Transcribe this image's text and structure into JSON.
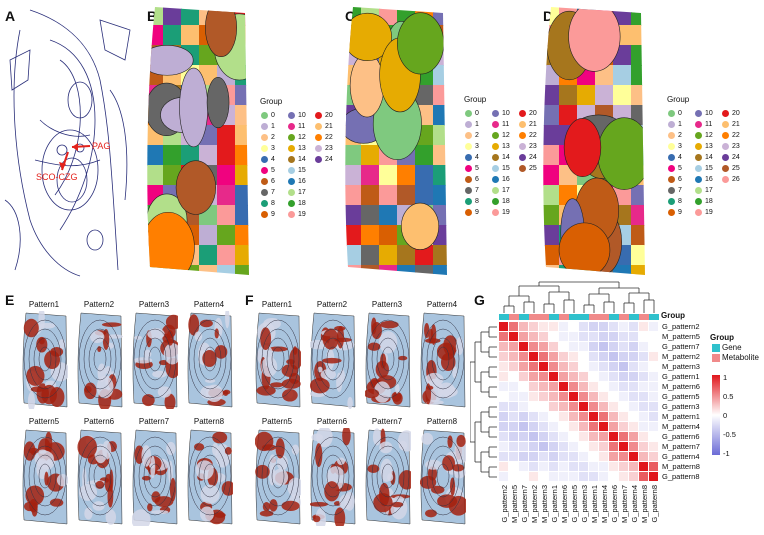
{
  "panels": {
    "A": {
      "label": "A",
      "annotations": [
        "PAG",
        "SCO-CZG"
      ],
      "arrow_color": "#e3221c"
    },
    "B": {
      "label": "B",
      "legend_title": "Group",
      "groups": [
        "0",
        "1",
        "2",
        "3",
        "4",
        "5",
        "6",
        "7",
        "8",
        "9",
        "10",
        "11",
        "12",
        "13",
        "14",
        "15",
        "16",
        "17",
        "18",
        "19",
        "20",
        "21",
        "22",
        "23",
        "24"
      ]
    },
    "C": {
      "label": "C",
      "legend_title": "Group",
      "groups": [
        "0",
        "1",
        "2",
        "3",
        "4",
        "5",
        "6",
        "7",
        "8",
        "9",
        "10",
        "11",
        "12",
        "13",
        "14",
        "15",
        "16",
        "17",
        "18",
        "19",
        "20",
        "21",
        "22",
        "23",
        "24",
        "25"
      ]
    },
    "D": {
      "label": "D",
      "legend_title": "Group",
      "groups": [
        "0",
        "1",
        "2",
        "3",
        "4",
        "5",
        "6",
        "7",
        "8",
        "9",
        "10",
        "11",
        "12",
        "13",
        "14",
        "15",
        "16",
        "17",
        "18",
        "19",
        "20",
        "21",
        "22",
        "23",
        "24",
        "25",
        "26"
      ]
    },
    "E": {
      "label": "E",
      "patterns": [
        "Pattern1",
        "Pattern2",
        "Pattern3",
        "Pattern4",
        "Pattern5",
        "Pattern6",
        "Pattern7",
        "Pattern8"
      ]
    },
    "F": {
      "label": "F",
      "patterns": [
        "Pattern1",
        "Pattern2",
        "Pattern3",
        "Pattern4",
        "Pattern5",
        "Pattern6",
        "Pattern7",
        "Pattern8"
      ]
    },
    "G": {
      "label": "G",
      "group_title": "Group",
      "group_legend": [
        {
          "name": "Gene",
          "color": "#2fc1cc"
        },
        {
          "name": "Metabolite",
          "color": "#f08a8a"
        }
      ],
      "colorbar_ticks": [
        "1",
        "0.5",
        "0",
        "-0.5",
        "-1"
      ],
      "row_labels": [
        "G_pattern2",
        "M_pattern5",
        "G_pattern7",
        "M_pattern2",
        "M_pattern3",
        "G_pattern1",
        "M_pattern6",
        "G_pattern5",
        "G_pattern3",
        "M_pattern1",
        "M_pattern4",
        "G_pattern6",
        "M_pattern7",
        "G_pattern4",
        "M_pattern8",
        "G_pattern8"
      ],
      "col_labels": [
        "G_pattern2",
        "M_pattern5",
        "G_pattern7",
        "M_pattern2",
        "M_pattern3",
        "G_pattern1",
        "M_pattern6",
        "G_pattern5",
        "G_pattern3",
        "M_pattern1",
        "M_pattern4",
        "G_pattern6",
        "M_pattern7",
        "G_pattern4",
        "M_pattern8",
        "G_pattern8"
      ]
    }
  },
  "palette": [
    "#7fc97f",
    "#beaed4",
    "#fdc086",
    "#ffff99",
    "#386cb0",
    "#f0027f",
    "#bf5b17",
    "#666666",
    "#1b9e77",
    "#d95f02",
    "#7570b3",
    "#e7298a",
    "#66a61e",
    "#e6ab02",
    "#a6761d",
    "#a6cee3",
    "#1f78b4",
    "#b2df8a",
    "#33a02c",
    "#fb9a99",
    "#e31a1c",
    "#fdbf6f",
    "#ff7f00",
    "#cab2d6",
    "#6a3d9a",
    "#b15928",
    "#fb9a99"
  ],
  "chart_data": {
    "type": "heatmap",
    "x": [
      "G_pattern2",
      "M_pattern5",
      "G_pattern7",
      "M_pattern2",
      "M_pattern3",
      "G_pattern1",
      "M_pattern6",
      "G_pattern5",
      "G_pattern3",
      "M_pattern1",
      "M_pattern4",
      "G_pattern6",
      "M_pattern7",
      "G_pattern4",
      "M_pattern8",
      "G_pattern8"
    ],
    "y": [
      "G_pattern2",
      "M_pattern5",
      "G_pattern7",
      "M_pattern2",
      "M_pattern3",
      "G_pattern1",
      "M_pattern6",
      "G_pattern5",
      "G_pattern3",
      "M_pattern1",
      "M_pattern4",
      "G_pattern6",
      "M_pattern7",
      "G_pattern4",
      "M_pattern8",
      "G_pattern8"
    ],
    "zlim": [
      -1,
      1
    ],
    "values": [
      [
        1,
        0.6,
        0.3,
        0.2,
        0.1,
        0.1,
        -0.1,
        0,
        -0.2,
        -0.3,
        -0.3,
        -0.2,
        -0.1,
        -0.2,
        0.1,
        -0.1
      ],
      [
        0.6,
        1,
        0.4,
        0.3,
        0.2,
        0,
        -0.1,
        -0.1,
        -0.2,
        -0.2,
        -0.3,
        -0.3,
        -0.2,
        -0.2,
        0,
        0
      ],
      [
        0.3,
        0.4,
        1,
        0.5,
        0.4,
        0.2,
        0,
        -0.1,
        -0.1,
        -0.3,
        -0.4,
        -0.3,
        -0.2,
        -0.3,
        -0.1,
        0
      ],
      [
        0.2,
        0.3,
        0.5,
        1,
        0.6,
        0.4,
        0.2,
        0.1,
        0,
        -0.2,
        -0.3,
        -0.4,
        -0.3,
        -0.3,
        -0.2,
        0.1
      ],
      [
        0.1,
        0.2,
        0.4,
        0.6,
        1,
        0.5,
        0.3,
        0.2,
        0,
        -0.1,
        -0.2,
        -0.3,
        -0.4,
        -0.2,
        -0.1,
        0
      ],
      [
        0.1,
        0,
        0.2,
        0.4,
        0.5,
        1,
        0.4,
        0.3,
        0.2,
        0,
        -0.1,
        -0.2,
        -0.3,
        -0.3,
        -0.2,
        -0.1
      ],
      [
        -0.1,
        -0.1,
        0,
        0.2,
        0.3,
        0.4,
        1,
        0.5,
        0.3,
        0.1,
        0,
        -0.1,
        -0.2,
        -0.2,
        -0.1,
        -0.1
      ],
      [
        0,
        -0.1,
        -0.1,
        0.1,
        0.2,
        0.3,
        0.5,
        1,
        0.5,
        0.3,
        0.1,
        0,
        -0.1,
        -0.2,
        -0.2,
        -0.1
      ],
      [
        -0.2,
        -0.2,
        -0.1,
        0,
        0,
        0.2,
        0.3,
        0.5,
        1,
        0.5,
        0.3,
        0.1,
        0,
        -0.1,
        -0.2,
        -0.2
      ],
      [
        -0.3,
        -0.2,
        -0.3,
        -0.2,
        -0.1,
        0,
        0.1,
        0.3,
        0.5,
        1,
        0.6,
        0.3,
        0.1,
        0,
        -0.1,
        -0.2
      ],
      [
        -0.3,
        -0.3,
        -0.4,
        -0.3,
        -0.2,
        -0.1,
        0,
        0.1,
        0.3,
        0.6,
        1,
        0.4,
        0.2,
        0.1,
        -0.1,
        -0.1
      ],
      [
        -0.2,
        -0.3,
        -0.3,
        -0.4,
        -0.3,
        -0.2,
        -0.1,
        0,
        0.1,
        0.3,
        0.4,
        1,
        0.6,
        0.4,
        0.1,
        0
      ],
      [
        -0.1,
        -0.2,
        -0.2,
        -0.3,
        -0.4,
        -0.3,
        -0.2,
        -0.1,
        0,
        0.1,
        0.2,
        0.6,
        1,
        0.5,
        0.2,
        0.1
      ],
      [
        -0.2,
        -0.2,
        -0.3,
        -0.3,
        -0.2,
        -0.3,
        -0.2,
        -0.2,
        -0.1,
        0,
        0.1,
        0.4,
        0.5,
        1,
        0.3,
        0.2
      ],
      [
        0.1,
        0,
        -0.1,
        -0.2,
        -0.1,
        -0.2,
        -0.1,
        -0.2,
        -0.2,
        -0.1,
        -0.1,
        0.1,
        0.2,
        0.3,
        1,
        0.7
      ],
      [
        -0.1,
        0,
        0,
        0.1,
        0,
        -0.1,
        -0.1,
        -0.1,
        -0.2,
        -0.2,
        -0.1,
        0,
        0.1,
        0.2,
        0.7,
        1
      ]
    ],
    "colormap": {
      "low": "#6b6bd6",
      "mid": "#ffffff",
      "high": "#e0161c"
    },
    "legend": "Group: Gene / Metabolite"
  }
}
